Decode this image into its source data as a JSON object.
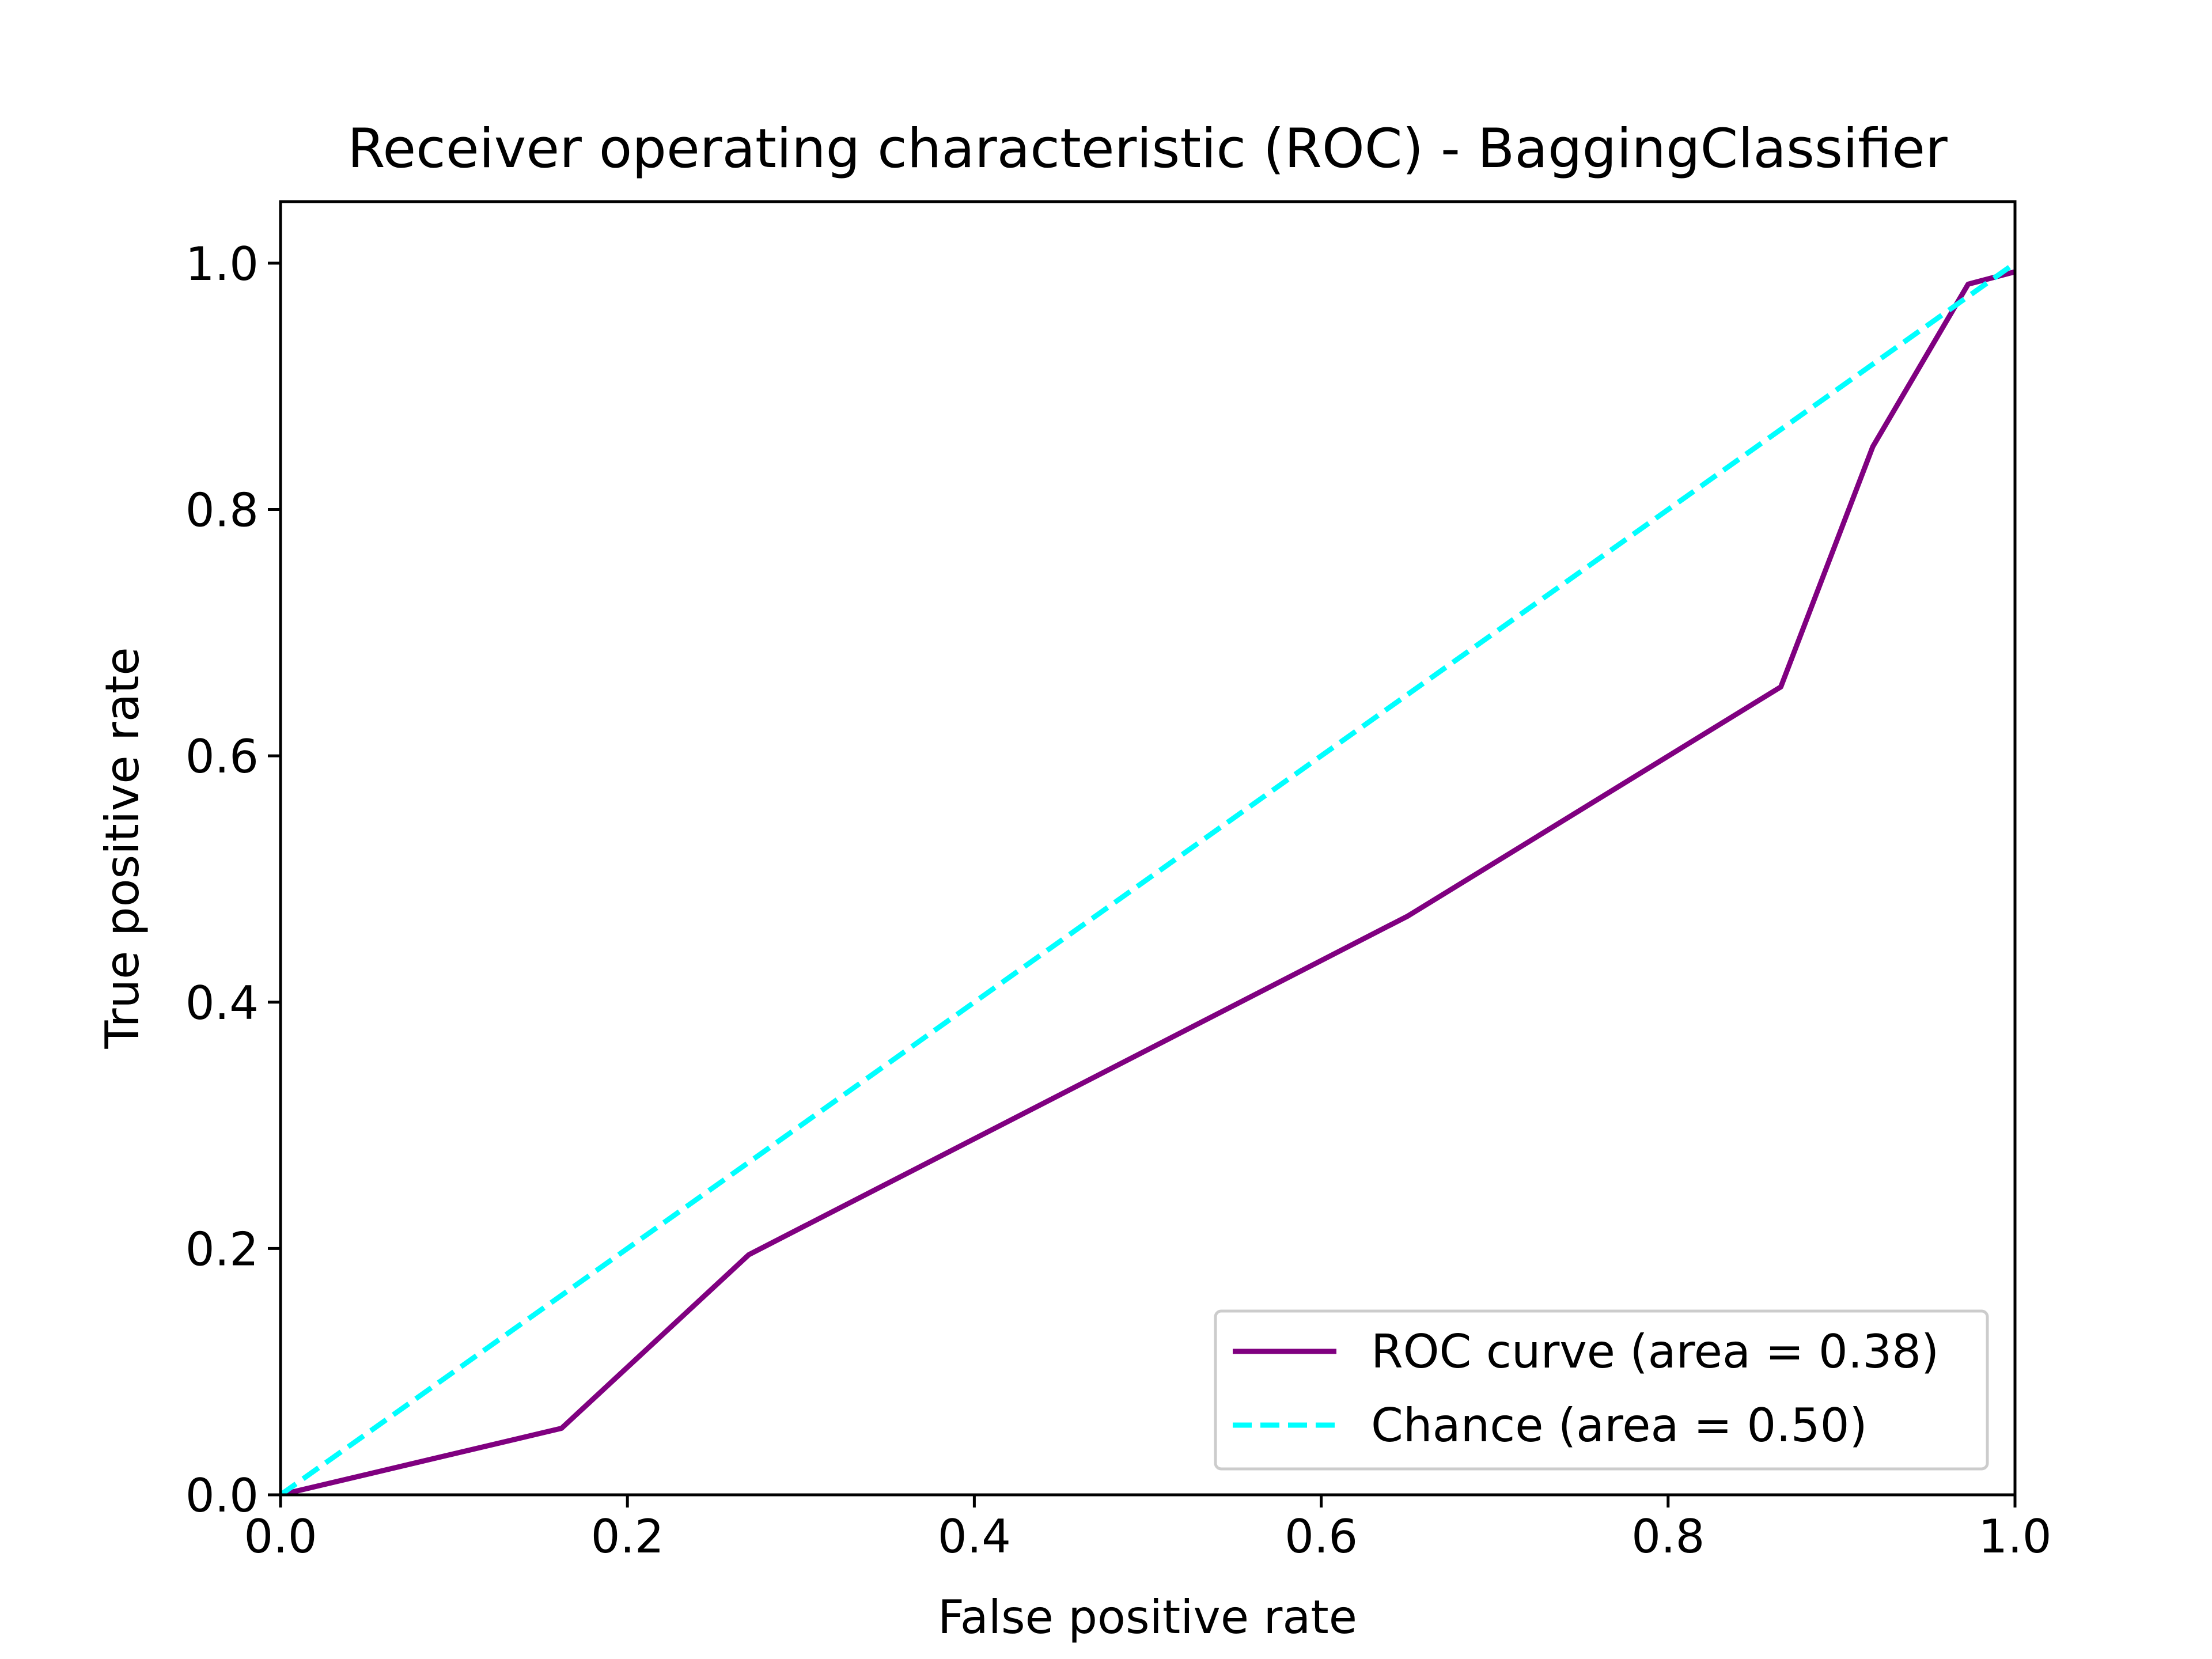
{
  "chart_data": {
    "type": "line",
    "title": "Receiver operating characteristic (ROC) - BaggingClassifier",
    "xlabel": "False positive rate",
    "ylabel": "True positive rate",
    "xlim": [
      0.0,
      1.0
    ],
    "ylim": [
      0.0,
      1.05
    ],
    "xticks": [
      0.0,
      0.2,
      0.4,
      0.6,
      0.8,
      1.0
    ],
    "xtick_labels": [
      "0.0",
      "0.2",
      "0.4",
      "0.6",
      "0.8",
      "1.0"
    ],
    "yticks": [
      0.0,
      0.2,
      0.4,
      0.6,
      0.8,
      1.0
    ],
    "ytick_labels": [
      "0.0",
      "0.2",
      "0.4",
      "0.6",
      "0.8",
      "1.0"
    ],
    "grid": false,
    "legend_position": "lower-right",
    "series": [
      {
        "name": "ROC curve (area = 0.38)",
        "color": "#800080",
        "style": "solid",
        "x": [
          0.0,
          0.162,
          0.27,
          0.65,
          0.865,
          0.918,
          0.973,
          1.0
        ],
        "y": [
          0.0,
          0.054,
          0.195,
          0.47,
          0.656,
          0.851,
          0.983,
          0.993
        ]
      },
      {
        "name": "Chance (area = 0.50)",
        "color": "#00ffff",
        "style": "dashed",
        "x": [
          0.0,
          1.0
        ],
        "y": [
          0.0,
          1.0
        ]
      }
    ]
  }
}
